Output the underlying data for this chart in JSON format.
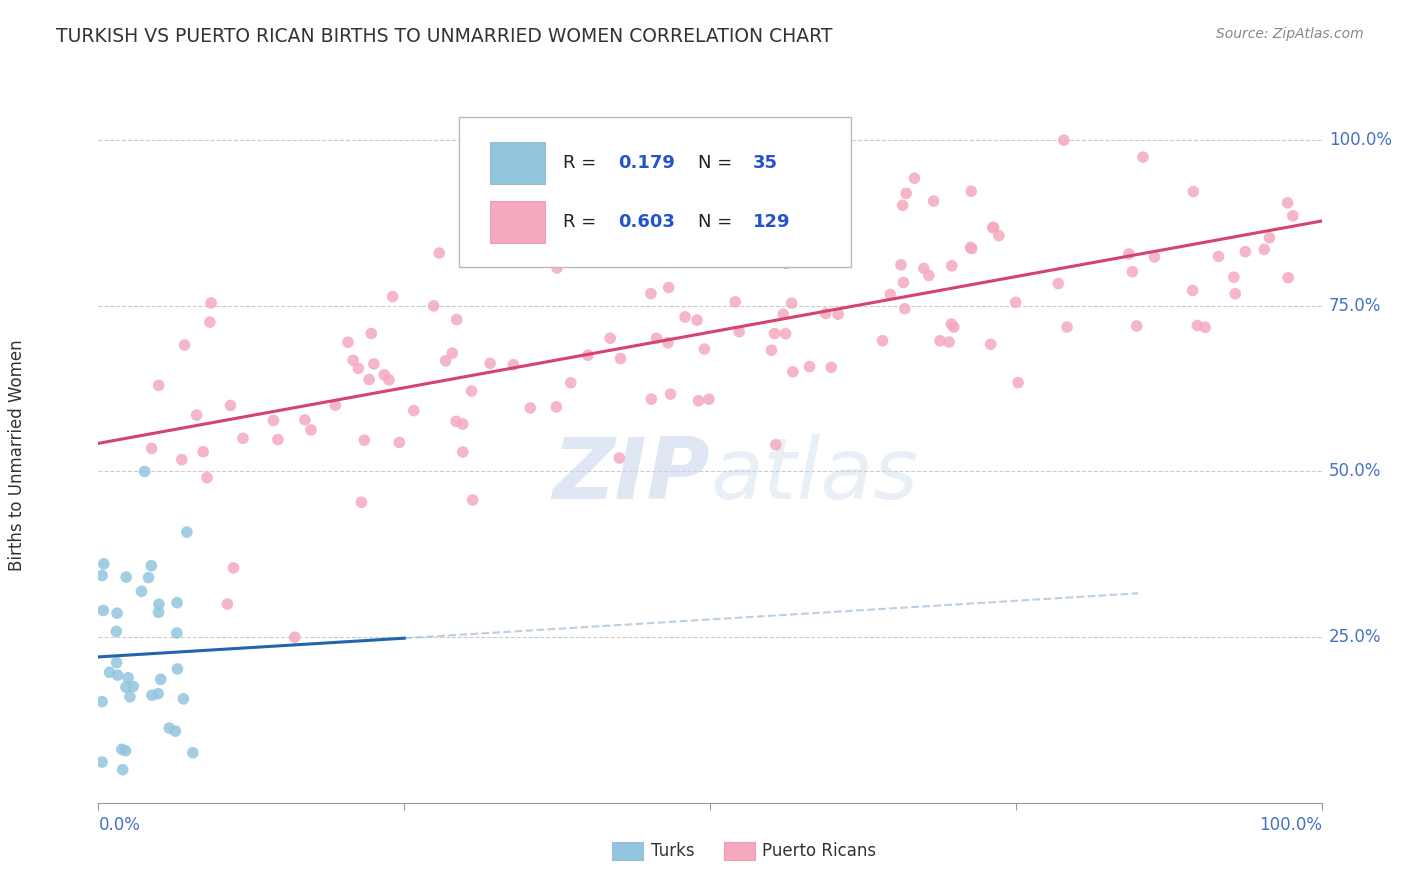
{
  "title": "TURKISH VS PUERTO RICAN BIRTHS TO UNMARRIED WOMEN CORRELATION CHART",
  "source_text": "Source: ZipAtlas.com",
  "ylabel": "Births to Unmarried Women",
  "ytick_labels": [
    "25.0%",
    "50.0%",
    "75.0%",
    "100.0%"
  ],
  "ytick_vals": [
    0.25,
    0.5,
    0.75,
    1.0
  ],
  "legend_r_turks": "0.179",
  "legend_n_turks": "35",
  "legend_r_puerto": "0.603",
  "legend_n_puerto": "129",
  "turks_color": "#92c5de",
  "turks_line_color": "#2166ac",
  "puerto_color": "#f4a9be",
  "puerto_line_color": "#d6436e",
  "watermark_color": "#c8d8ec",
  "background_color": "#ffffff",
  "xlim": [
    0.0,
    1.0
  ],
  "ylim": [
    0.0,
    1.05
  ]
}
